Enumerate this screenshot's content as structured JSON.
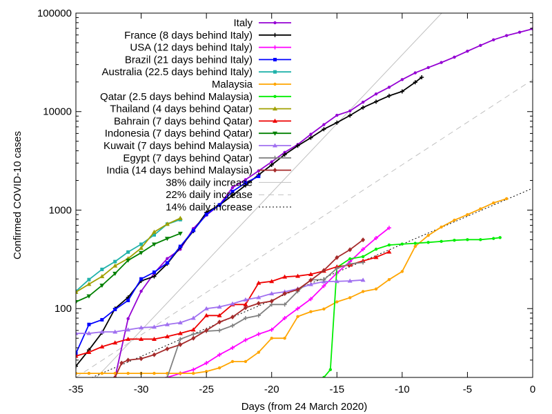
{
  "chart_data": {
    "type": "line",
    "title": "",
    "xlabel": "Days (from 24 March 2020)",
    "ylabel": "Confirmed COVID-10 cases",
    "xlim": [
      -35,
      0
    ],
    "ylim": [
      20,
      100000
    ],
    "yscale": "log",
    "x_ticks": [
      -35,
      -30,
      -25,
      -20,
      -15,
      -10,
      -5,
      0
    ],
    "x_tick_labels": [
      "-35",
      "-30",
      "-25",
      "-20",
      "-15",
      "-10",
      "-5",
      "0"
    ],
    "y_ticks": [
      100,
      1000,
      10000,
      100000
    ],
    "y_tick_labels": [
      "100",
      "1000",
      "10000",
      "100000"
    ],
    "grid": false,
    "legend_position": "top-left",
    "series": [
      {
        "name": "Italy",
        "color": "#9400d3",
        "marker": "dot",
        "x": [
          -32,
          -31,
          -30,
          -29,
          -28,
          -27,
          -26,
          -25,
          -24,
          -23,
          -22,
          -21,
          -20,
          -19,
          -18,
          -17,
          -16,
          -15,
          -14,
          -13,
          -12,
          -11,
          -10,
          -9,
          -8,
          -7,
          -6,
          -5,
          -4,
          -3,
          -2,
          -1,
          0
        ],
        "y": [
          20,
          79,
          150,
          229,
          322,
          400,
          650,
          888,
          1128,
          1694,
          2036,
          2502,
          3089,
          3858,
          4636,
          5883,
          7375,
          9172,
          10149,
          12462,
          15113,
          17660,
          21157,
          24747,
          27980,
          31506,
          35713,
          41035,
          47021,
          53578,
          59138,
          63927,
          69176
        ]
      },
      {
        "name": "France (8 days behind Italy)",
        "color": "#000000",
        "marker": "plus",
        "x": [
          -35,
          -34,
          -33,
          -32,
          -31,
          -30,
          -29,
          -28,
          -27,
          -26,
          -25,
          -24,
          -23,
          -22,
          -21,
          -20,
          -19,
          -18,
          -17,
          -16,
          -15,
          -14,
          -13,
          -12,
          -11,
          -10,
          -9,
          -8.5
        ],
        "y": [
          26,
          38,
          57,
          100,
          130,
          191,
          212,
          285,
          420,
          613,
          949,
          1126,
          1412,
          1784,
          2281,
          2876,
          3661,
          4499,
          5423,
          6633,
          7730,
          9134,
          10995,
          12612,
          14459,
          16018,
          19856,
          22304
        ]
      },
      {
        "name": "USA (12 days behind Italy)",
        "color": "#ff00ff",
        "marker": "plus",
        "x": [
          -28,
          -27,
          -26,
          -25,
          -24,
          -23,
          -22,
          -21,
          -20,
          -19,
          -18,
          -17,
          -16,
          -15,
          -14,
          -13,
          -12,
          -11
        ],
        "y": [
          20,
          22,
          24,
          28,
          34,
          40,
          48,
          55,
          61,
          80,
          100,
          125,
          170,
          230,
          300,
          400,
          520,
          660
        ]
      },
      {
        "name": "Brazil (21 days behind Italy)",
        "color": "#0000ff",
        "marker": "square",
        "x": [
          -35,
          -34,
          -33,
          -32,
          -31,
          -30,
          -29,
          -28,
          -27,
          -26,
          -25,
          -24,
          -23,
          -22,
          -21
        ],
        "y": [
          35,
          69,
          77,
          98,
          121,
          200,
          234,
          291,
          428,
          621,
          904,
          1128,
          1546,
          1891,
          2201
        ]
      },
      {
        "name": "Australia (22.5 days behind Italy)",
        "color": "#20b2aa",
        "marker": "square",
        "x": [
          -35,
          -34,
          -33,
          -32,
          -31,
          -30,
          -29,
          -28,
          -27
        ],
        "y": [
          150,
          197,
          250,
          300,
          375,
          450,
          560,
          720,
          800
        ]
      },
      {
        "name": "Malaysia",
        "color": "#ffa500",
        "marker": "dot",
        "x": [
          -35,
          -34,
          -33,
          -32,
          -31,
          -30,
          -29,
          -28,
          -27,
          -26,
          -25,
          -24,
          -23,
          -22,
          -21,
          -20,
          -19,
          -18,
          -17,
          -16,
          -15,
          -14,
          -13,
          -12,
          -11,
          -10,
          -9,
          -8,
          -7,
          -6,
          -5,
          -4,
          -3,
          -2
        ],
        "y": [
          22,
          22,
          22,
          22,
          22,
          22,
          22,
          22,
          22,
          22,
          23,
          25,
          29,
          29,
          36,
          50,
          50,
          83,
          93,
          99,
          117,
          129,
          149,
          158,
          197,
          238,
          428,
          553,
          673,
          790,
          900,
          1030,
          1183,
          1306
        ]
      },
      {
        "name": "Qatar (2.5 days behind Malaysia)",
        "color": "#00ee00",
        "marker": "dot",
        "x": [
          -16,
          -15.5,
          -15,
          -14,
          -13,
          -12,
          -11,
          -10,
          -9,
          -8,
          -7,
          -6,
          -5,
          -4,
          -3,
          -2.5
        ],
        "y": [
          20,
          24,
          262,
          320,
          337,
          401,
          442,
          452,
          460,
          470,
          481,
          494,
          501,
          501,
          515,
          526
        ]
      },
      {
        "name": "Thailand  (4 days behind Qatar)",
        "color": "#a0a000",
        "marker": "triangle",
        "x": [
          -35,
          -34,
          -33,
          -32,
          -31,
          -30,
          -29,
          -28,
          -27
        ],
        "y": [
          147,
          177,
          212,
          272,
          322,
          411,
          599,
          721,
          827
        ]
      },
      {
        "name": "Bahrain (7 days behind Qatar)",
        "color": "#ee0000",
        "marker": "triangle",
        "x": [
          -35,
          -34,
          -33,
          -32,
          -31,
          -30,
          -29,
          -28,
          -27,
          -26,
          -25,
          -24,
          -23,
          -22,
          -21,
          -20,
          -19,
          -18,
          -17,
          -16,
          -15,
          -14,
          -13,
          -12,
          -11
        ],
        "y": [
          33,
          36,
          41,
          45,
          49,
          49,
          49,
          52,
          56,
          61,
          85,
          85,
          110,
          110,
          182,
          189,
          210,
          214,
          223,
          241,
          266,
          278,
          305,
          332,
          377
        ]
      },
      {
        "name": "Indonesia (7 days behind Qatar)",
        "color": "#008000",
        "marker": "triangle-down",
        "x": [
          -35,
          -34,
          -33,
          -32,
          -31,
          -30,
          -29,
          -28,
          -27
        ],
        "y": [
          117,
          134,
          172,
          227,
          309,
          369,
          450,
          514,
          579
        ]
      },
      {
        "name": "Kuwait (7 days behind Malaysia)",
        "color": "#a070f0",
        "marker": "triangle",
        "x": [
          -35,
          -34,
          -33,
          -32,
          -31,
          -30,
          -29,
          -28,
          -27,
          -26,
          -25,
          -24,
          -23,
          -22,
          -21,
          -20,
          -19,
          -18,
          -17,
          -16,
          -15,
          -14,
          -13
        ],
        "y": [
          56,
          56,
          58,
          58,
          61,
          64,
          65,
          69,
          72,
          80,
          100,
          104,
          112,
          123,
          130,
          142,
          148,
          159,
          176,
          188,
          189,
          191,
          195
        ]
      },
      {
        "name": "Egypt (7 days behind Qatar)",
        "color": "#808080",
        "marker": "cross",
        "x": [
          -28,
          -27,
          -26,
          -25,
          -24,
          -23,
          -22,
          -21,
          -20,
          -19,
          -18,
          -17,
          -16,
          -15,
          -14,
          -13
        ],
        "y": [
          20,
          49,
          55,
          59,
          60,
          67,
          80,
          85,
          110,
          110,
          150,
          196,
          196,
          256,
          285,
          294
        ]
      },
      {
        "name": "India (14 days behind Malaysia)",
        "color": "#a52a2a",
        "marker": "diamond",
        "x": [
          -32,
          -31.5,
          -31,
          -30,
          -29,
          -28,
          -27,
          -26,
          -25,
          -24,
          -23,
          -22,
          -21,
          -20,
          -19,
          -18,
          -17,
          -16,
          -15,
          -14,
          -13
        ],
        "y": [
          20,
          28,
          30,
          31,
          34,
          39,
          43,
          50,
          60,
          73,
          82,
          102,
          113,
          119,
          142,
          156,
          194,
          244,
          330,
          396,
          499
        ]
      }
    ],
    "reference_lines": [
      {
        "name": "38% daily increase",
        "style": "solid",
        "color": "#c0c0c0",
        "x0": -35,
        "y0": 12,
        "rate": 0.38
      },
      {
        "name": "22% daily increase",
        "style": "dashed",
        "color": "#c0c0c0",
        "x0": -35,
        "y0": 20,
        "rate": 0.22
      },
      {
        "name": "14% daily increase",
        "style": "dotted",
        "color": "#000000",
        "x0": -35,
        "y0": 17,
        "rate": 0.14
      }
    ]
  }
}
